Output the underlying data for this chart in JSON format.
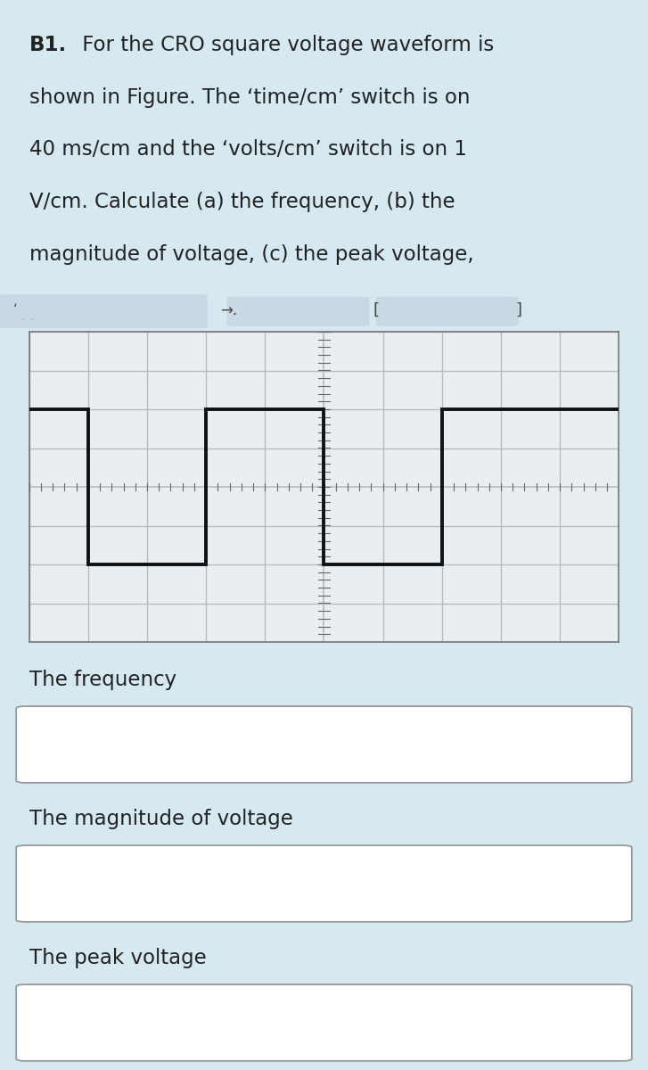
{
  "background_color": "#d6e8f0",
  "title_bold": "B1.",
  "title_lines": [
    [
      "bold",
      "B1.",
      "normal",
      " For the CRO square voltage waveform is"
    ],
    [
      "normal",
      "shown in Figure. The ‘time/cm’ switch is on",
      "",
      ""
    ],
    [
      "normal",
      "40 ms/cm and the ‘volts/cm’ switch is on 1",
      "",
      ""
    ],
    [
      "normal",
      "V/cm. Calculate (a) the frequency, (b) the",
      "",
      ""
    ],
    [
      "normal",
      "magnitude of voltage, (c) the peak voltage,",
      "",
      ""
    ]
  ],
  "grid_color": "#bbbbbb",
  "center_axis_color": "#666666",
  "waveform_color": "#111111",
  "waveform_linewidth": 2.8,
  "waveform_x": [
    -5.0,
    -4.0,
    -4.0,
    -2.0,
    -2.0,
    0.0,
    0.0,
    2.0,
    2.0,
    5.0
  ],
  "waveform_y": [
    2.0,
    2.0,
    -2.0,
    -2.0,
    2.0,
    2.0,
    -2.0,
    -2.0,
    2.0,
    2.0
  ],
  "osc_xlim": [
    -5,
    5
  ],
  "osc_ylim": [
    -4,
    4
  ],
  "osc_bg": "#e8eef2",
  "label_frequency": "The frequency",
  "label_magnitude": "The magnitude of voltage",
  "label_peak": "The peak voltage",
  "box_bg": "#ffffff",
  "box_border": "#999999",
  "text_color": "#222222",
  "text_fontsize": 16.5
}
